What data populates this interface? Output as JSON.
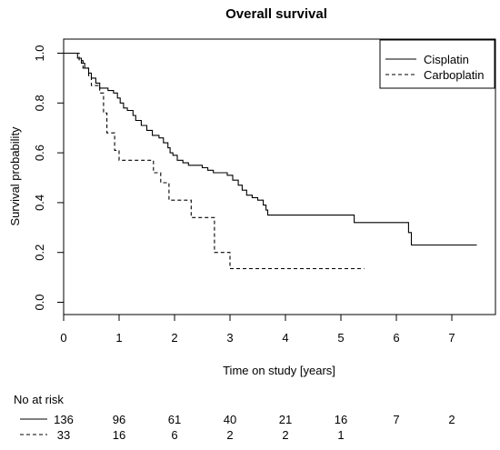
{
  "chart_data": {
    "type": "line",
    "step": true,
    "title": "Overall survival",
    "xlabel": "Time on study [years]",
    "ylabel": "Survival probability",
    "xlim": [
      0,
      7.45
    ],
    "ylim": [
      0,
      1
    ],
    "xticks": [
      0,
      1,
      2,
      3,
      4,
      5,
      6,
      7
    ],
    "yticks": [
      0.0,
      0.2,
      0.4,
      0.6,
      0.8,
      1.0
    ],
    "ytick_labels": [
      "0.0",
      "0.2",
      "0.4",
      "0.6",
      "0.8",
      "1.0"
    ],
    "grid": false,
    "legend_position": "top-right",
    "series": [
      {
        "name": "Cisplatin",
        "dash": "solid",
        "points": [
          [
            0,
            1.0
          ],
          [
            0.25,
            0.98
          ],
          [
            0.32,
            0.96
          ],
          [
            0.38,
            0.94
          ],
          [
            0.45,
            0.92
          ],
          [
            0.5,
            0.9
          ],
          [
            0.58,
            0.88
          ],
          [
            0.65,
            0.86
          ],
          [
            0.8,
            0.85
          ],
          [
            0.9,
            0.84
          ],
          [
            0.97,
            0.82
          ],
          [
            1.02,
            0.8
          ],
          [
            1.08,
            0.78
          ],
          [
            1.15,
            0.77
          ],
          [
            1.25,
            0.75
          ],
          [
            1.3,
            0.73
          ],
          [
            1.4,
            0.71
          ],
          [
            1.5,
            0.69
          ],
          [
            1.6,
            0.67
          ],
          [
            1.72,
            0.66
          ],
          [
            1.8,
            0.64
          ],
          [
            1.88,
            0.62
          ],
          [
            1.92,
            0.6
          ],
          [
            1.97,
            0.59
          ],
          [
            2.05,
            0.57
          ],
          [
            2.15,
            0.56
          ],
          [
            2.25,
            0.55
          ],
          [
            2.4,
            0.55
          ],
          [
            2.5,
            0.54
          ],
          [
            2.6,
            0.53
          ],
          [
            2.7,
            0.52
          ],
          [
            2.87,
            0.52
          ],
          [
            2.95,
            0.51
          ],
          [
            3.05,
            0.49
          ],
          [
            3.15,
            0.47
          ],
          [
            3.22,
            0.45
          ],
          [
            3.3,
            0.43
          ],
          [
            3.4,
            0.42
          ],
          [
            3.5,
            0.41
          ],
          [
            3.6,
            0.39
          ],
          [
            3.65,
            0.37
          ],
          [
            3.68,
            0.35
          ],
          [
            4.5,
            0.35
          ],
          [
            5.22,
            0.35
          ],
          [
            5.24,
            0.32
          ],
          [
            6.2,
            0.32
          ],
          [
            6.22,
            0.28
          ],
          [
            6.27,
            0.23
          ],
          [
            7.45,
            0.23
          ]
        ]
      },
      {
        "name": "Carboplatin",
        "dash": "dashed",
        "points": [
          [
            0,
            1.0
          ],
          [
            0.28,
            0.97
          ],
          [
            0.35,
            0.94
          ],
          [
            0.45,
            0.91
          ],
          [
            0.5,
            0.87
          ],
          [
            0.6,
            0.87
          ],
          [
            0.65,
            0.84
          ],
          [
            0.72,
            0.76
          ],
          [
            0.78,
            0.68
          ],
          [
            0.85,
            0.68
          ],
          [
            0.92,
            0.61
          ],
          [
            1.0,
            0.57
          ],
          [
            1.55,
            0.57
          ],
          [
            1.62,
            0.52
          ],
          [
            1.75,
            0.48
          ],
          [
            1.85,
            0.48
          ],
          [
            1.9,
            0.41
          ],
          [
            2.2,
            0.41
          ],
          [
            2.3,
            0.34
          ],
          [
            2.7,
            0.34
          ],
          [
            2.72,
            0.2
          ],
          [
            2.95,
            0.2
          ],
          [
            3.0,
            0.135
          ],
          [
            5.42,
            0.135
          ]
        ]
      }
    ],
    "at_risk": {
      "title": "No at risk",
      "times": [
        0,
        1,
        2,
        3,
        4,
        5,
        6,
        7
      ],
      "rows": [
        {
          "series": "Cisplatin",
          "dash": "solid",
          "counts": [
            "136",
            "96",
            "61",
            "40",
            "21",
            "16",
            "7",
            "2"
          ]
        },
        {
          "series": "Carboplatin",
          "dash": "dashed",
          "counts": [
            "33",
            "16",
            "6",
            "2",
            "2",
            "1",
            "",
            ""
          ]
        }
      ]
    }
  }
}
